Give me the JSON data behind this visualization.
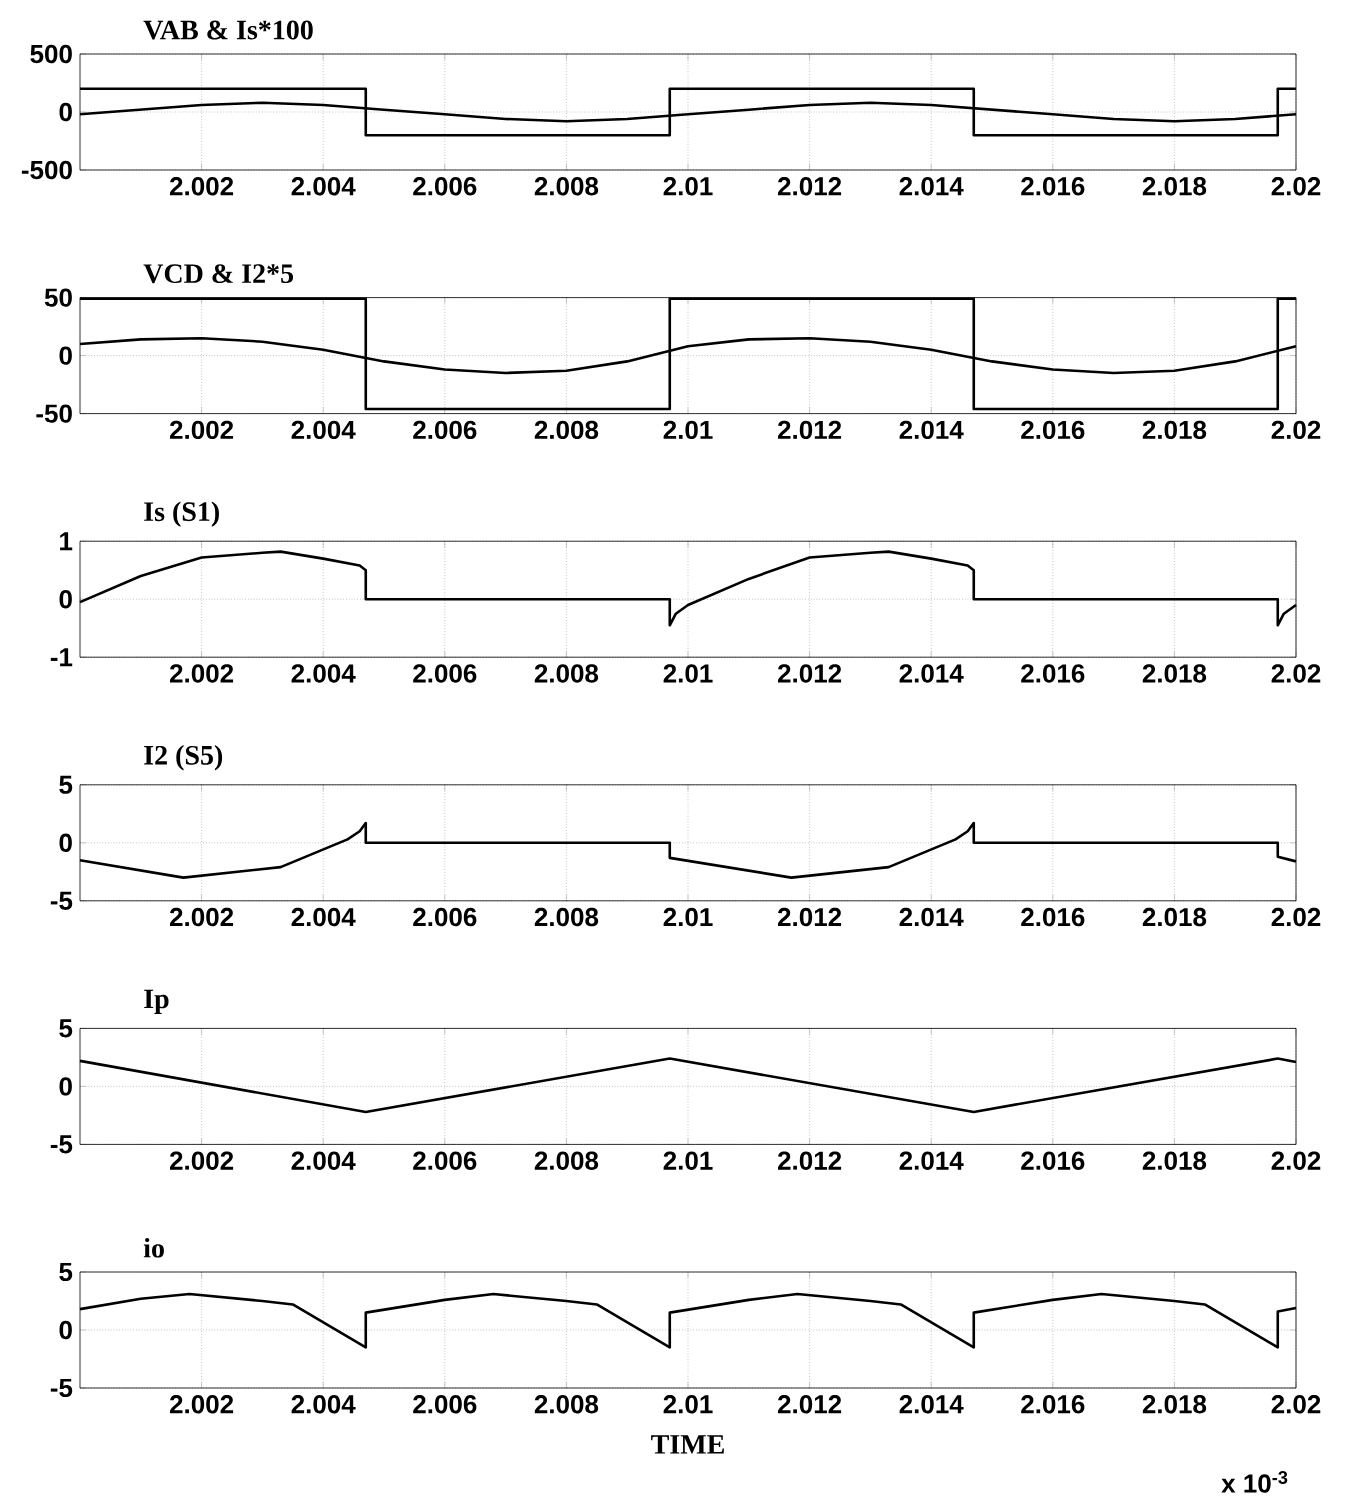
{
  "chart_data": [
    {
      "type": "line",
      "title": "VAB & Is*100",
      "xlim": [
        2.0,
        2.02
      ],
      "ylim": [
        -500,
        500
      ],
      "xticks": [
        2.002,
        2.004,
        2.006,
        2.008,
        2.01,
        2.012,
        2.014,
        2.016,
        2.018,
        2.02
      ],
      "yticks": [
        -500,
        0,
        500
      ],
      "grid": true,
      "marker": "none",
      "series": [
        {
          "color": "#000000",
          "x": [
            2.0,
            2.0047,
            2.0047,
            2.0097,
            2.0097,
            2.0147,
            2.0147,
            2.0197,
            2.0197,
            2.02
          ],
          "values": [
            200,
            200,
            -200,
            -200,
            200,
            200,
            -200,
            -200,
            200,
            200
          ]
        },
        {
          "color": "#000000",
          "x": [
            2.0,
            2.001,
            2.002,
            2.003,
            2.004,
            2.005,
            2.006,
            2.007,
            2.008,
            2.009,
            2.01,
            2.011,
            2.012,
            2.013,
            2.014,
            2.015,
            2.016,
            2.017,
            2.018,
            2.019,
            2.02
          ],
          "values": [
            -20,
            20,
            60,
            80,
            60,
            20,
            -20,
            -60,
            -80,
            -60,
            -20,
            20,
            60,
            80,
            60,
            20,
            -20,
            -60,
            -80,
            -60,
            -20
          ]
        }
      ]
    },
    {
      "type": "line",
      "title": "VCD & I2*5",
      "xlim": [
        2.0,
        2.02
      ],
      "ylim": [
        -50,
        50
      ],
      "xticks": [
        2.002,
        2.004,
        2.006,
        2.008,
        2.01,
        2.012,
        2.014,
        2.016,
        2.018,
        2.02
      ],
      "yticks": [
        -50,
        0,
        50
      ],
      "grid": true,
      "marker": "none",
      "series": [
        {
          "color": "#000000",
          "x": [
            2.0,
            2.0047,
            2.0047,
            2.0097,
            2.0097,
            2.0147,
            2.0147,
            2.0197,
            2.0197,
            2.02
          ],
          "values": [
            49,
            49,
            -46,
            -46,
            49,
            49,
            -46,
            -46,
            49,
            49
          ]
        },
        {
          "color": "#000000",
          "x": [
            2.0,
            2.001,
            2.002,
            2.003,
            2.004,
            2.005,
            2.006,
            2.007,
            2.008,
            2.009,
            2.01,
            2.011,
            2.012,
            2.013,
            2.014,
            2.015,
            2.016,
            2.017,
            2.018,
            2.019,
            2.02
          ],
          "values": [
            10,
            14,
            15,
            12,
            5,
            -5,
            -12,
            -15,
            -13,
            -5,
            8,
            14,
            15,
            12,
            5,
            -5,
            -12,
            -15,
            -13,
            -5,
            8
          ]
        }
      ]
    },
    {
      "type": "line",
      "title": "Is (S1)",
      "xlim": [
        2.0,
        2.02
      ],
      "ylim": [
        -1,
        1
      ],
      "xticks": [
        2.002,
        2.004,
        2.006,
        2.008,
        2.01,
        2.012,
        2.014,
        2.016,
        2.018,
        2.02
      ],
      "yticks": [
        -1,
        0,
        1
      ],
      "grid": true,
      "marker": "none",
      "series": [
        {
          "color": "#000000",
          "x": [
            2.0,
            2.001,
            2.002,
            2.003,
            2.0033,
            2.004,
            2.0046,
            2.0047,
            2.0047,
            2.0097,
            2.0097,
            2.0098,
            2.01,
            2.011,
            2.012,
            2.013,
            2.0133,
            2.014,
            2.0146,
            2.0147,
            2.0147,
            2.0197,
            2.0197,
            2.0198,
            2.02
          ],
          "values": [
            -0.05,
            0.4,
            0.72,
            0.8,
            0.82,
            0.7,
            0.58,
            0.5,
            0,
            0,
            -0.45,
            -0.25,
            -0.1,
            0.35,
            0.72,
            0.8,
            0.82,
            0.7,
            0.58,
            0.5,
            0,
            0,
            -0.45,
            -0.25,
            -0.1
          ]
        }
      ]
    },
    {
      "type": "line",
      "title": "I2 (S5)",
      "xlim": [
        2.0,
        2.02
      ],
      "ylim": [
        -5,
        5
      ],
      "xticks": [
        2.002,
        2.004,
        2.006,
        2.008,
        2.01,
        2.012,
        2.014,
        2.016,
        2.018,
        2.02
      ],
      "yticks": [
        -5,
        0,
        5
      ],
      "grid": true,
      "marker": "none",
      "series": [
        {
          "color": "#000000",
          "x": [
            2.0,
            2.0017,
            2.0033,
            2.0044,
            2.0046,
            2.0047,
            2.0047,
            2.0097,
            2.0097,
            2.0117,
            2.0133,
            2.0144,
            2.0146,
            2.0147,
            2.0147,
            2.0197,
            2.0197,
            2.02
          ],
          "values": [
            -1.5,
            -3.0,
            -2.1,
            0.3,
            1.0,
            1.7,
            0,
            0,
            -1.3,
            -3.0,
            -2.1,
            0.3,
            1.0,
            1.7,
            0,
            0,
            -1.2,
            -1.6
          ]
        }
      ]
    },
    {
      "type": "line",
      "title": "Ip",
      "xlim": [
        2.0,
        2.02
      ],
      "ylim": [
        -5,
        5
      ],
      "xticks": [
        2.002,
        2.004,
        2.006,
        2.008,
        2.01,
        2.012,
        2.014,
        2.016,
        2.018,
        2.02
      ],
      "yticks": [
        -5,
        0,
        5
      ],
      "grid": true,
      "marker": "none",
      "series": [
        {
          "color": "#000000",
          "x": [
            2.0,
            2.0047,
            2.0097,
            2.0147,
            2.0197,
            2.02
          ],
          "values": [
            2.2,
            -2.2,
            2.4,
            -2.2,
            2.4,
            2.1
          ]
        }
      ]
    },
    {
      "type": "line",
      "title": "io",
      "xlabel": "TIME",
      "annotations": [
        "x 10$^{-3}$"
      ],
      "xlim": [
        2.0,
        2.02
      ],
      "ylim": [
        -5,
        5
      ],
      "xticks": [
        2.002,
        2.004,
        2.006,
        2.008,
        2.01,
        2.012,
        2.014,
        2.016,
        2.018,
        2.02
      ],
      "yticks": [
        -5,
        0,
        5
      ],
      "grid": true,
      "marker": "none",
      "series": [
        {
          "color": "#000000",
          "x": [
            2.0,
            2.001,
            2.0018,
            2.003,
            2.0035,
            2.0047,
            2.0047,
            2.006,
            2.0068,
            2.008,
            2.0085,
            2.0097,
            2.0097,
            2.011,
            2.0118,
            2.013,
            2.0135,
            2.0147,
            2.0147,
            2.016,
            2.0168,
            2.018,
            2.0185,
            2.0197,
            2.0197,
            2.02
          ],
          "values": [
            1.8,
            2.7,
            3.1,
            2.5,
            2.2,
            -1.5,
            1.5,
            2.6,
            3.1,
            2.5,
            2.2,
            -1.5,
            1.5,
            2.6,
            3.1,
            2.5,
            2.2,
            -1.5,
            1.5,
            2.6,
            3.1,
            2.5,
            2.2,
            -1.5,
            1.6,
            1.9
          ]
        }
      ]
    }
  ]
}
